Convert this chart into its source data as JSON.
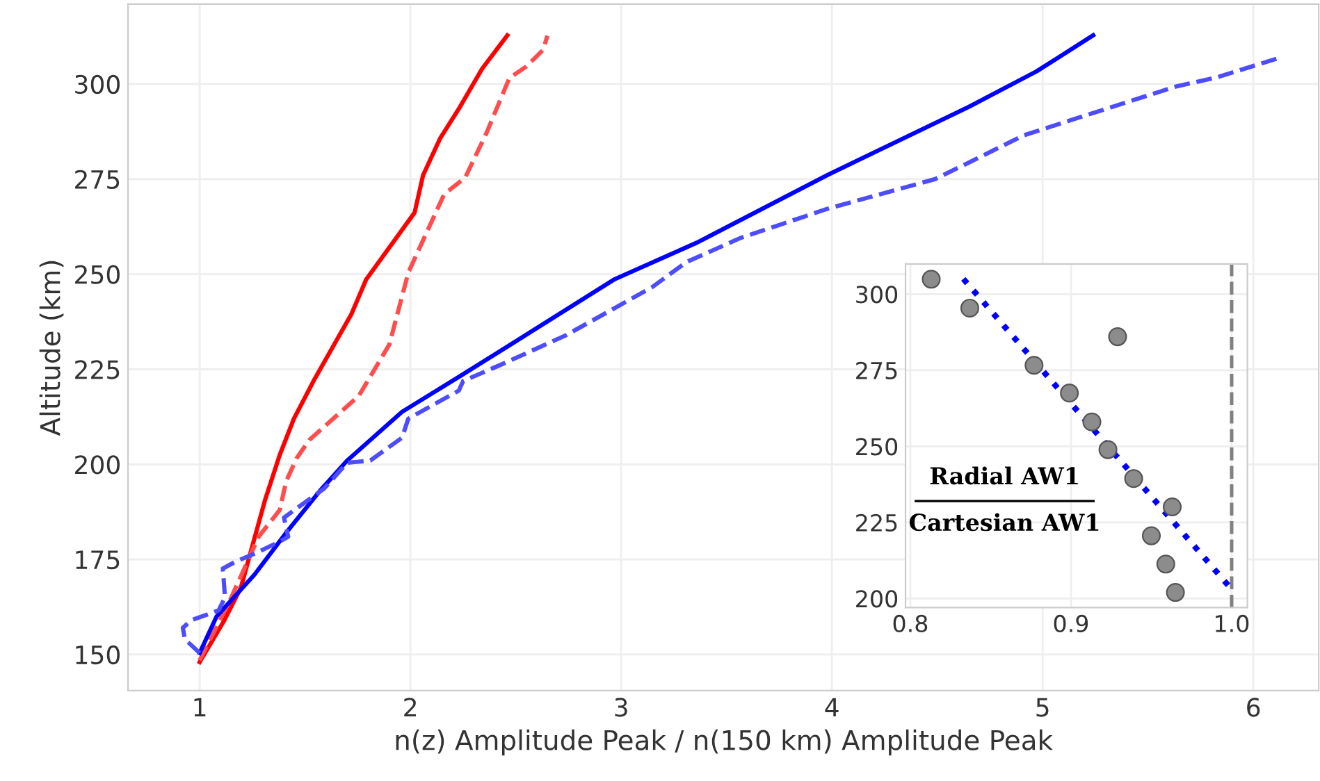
{
  "chart_data": [
    {
      "type": "line",
      "xlabel": "n(z) Amplitude Peak / n(150 km) Amplitude Peak",
      "ylabel": "Altitude (km)",
      "xlim": [
        0.66,
        6.31
      ],
      "ylim": [
        140.5,
        321
      ],
      "xticks": [
        1,
        2,
        3,
        4,
        5,
        6
      ],
      "yticks": [
        150,
        175,
        200,
        225,
        250,
        275,
        300
      ],
      "grid": true,
      "series": [
        {
          "color": "#ff0000",
          "line_style": "solid",
          "x": [
            1.0,
            1.117,
            1.195,
            1.31,
            1.38,
            1.447,
            1.545,
            1.72,
            1.79,
            2.02,
            2.06,
            2.14,
            2.23,
            2.34,
            2.46
          ],
          "values": [
            148,
            159,
            167.5,
            190.6,
            202.5,
            212,
            222.4,
            239.5,
            248.6,
            266.2,
            276,
            285.6,
            293.5,
            304,
            312.8
          ]
        },
        {
          "color": "#ff4d4d",
          "line_style": "dashed",
          "x": [
            1.0,
            1.15,
            1.28,
            1.38,
            1.41,
            1.46,
            1.52,
            1.755,
            1.9,
            1.99,
            2.05,
            2.16,
            2.26,
            2.36,
            2.47,
            2.55,
            2.63,
            2.65
          ],
          "values": [
            148.5,
            165,
            181,
            188,
            195.5,
            201.6,
            206.4,
            218,
            231.5,
            250.4,
            257.7,
            271,
            275.4,
            287,
            301.6,
            304.6,
            309,
            312.7
          ]
        },
        {
          "color": "#0000ff",
          "line_style": "solid",
          "x": [
            1.0,
            1.08,
            1.26,
            1.41,
            1.57,
            1.7,
            1.96,
            2.23,
            2.49,
            2.97,
            3.36,
            3.98,
            4.65,
            4.97,
            5.24
          ],
          "values": [
            150.4,
            160,
            171,
            182,
            193,
            201,
            213.8,
            223,
            232,
            248.7,
            258.3,
            276.1,
            294,
            303.3,
            312.8
          ]
        },
        {
          "color": "#4d4dff",
          "line_style": "dashed",
          "x": [
            1.0,
            0.93,
            0.92,
            0.96,
            1.09,
            1.12,
            1.11,
            1.17,
            1.28,
            1.39,
            1.42,
            1.4,
            1.59,
            1.7,
            1.81,
            1.96,
            1.99,
            2.23,
            2.25,
            2.45,
            2.74,
            2.98,
            3.15,
            3.31,
            3.57,
            3.98,
            4.49,
            4.63,
            4.91,
            5.23,
            5.63,
            5.83,
            6.13
          ],
          "values": [
            150.4,
            154,
            157,
            159,
            161.6,
            165,
            172.6,
            174.4,
            177,
            180,
            181,
            186,
            193.6,
            200.4,
            201,
            207,
            212,
            219.4,
            221.9,
            226.7,
            234,
            241.4,
            246.7,
            253.2,
            259.6,
            267.2,
            275,
            278.8,
            286.5,
            292.2,
            299.3,
            301.8,
            307
          ]
        }
      ]
    },
    {
      "type": "scatter",
      "xlim": [
        0.797,
        1.0098
      ],
      "ylim": [
        197,
        309.9
      ],
      "xticks": [
        0.8,
        0.9,
        {
          "value": 1.0,
          "label": "1.0"
        }
      ],
      "yticks": [
        200,
        225,
        250,
        275,
        300
      ],
      "grid": true,
      "annotations": [
        "Radial AW1",
        "Cartesian AW1"
      ],
      "ref_lines": [
        {
          "axis": "x",
          "value": 1.0,
          "color": "#808080",
          "line_style": "dashed"
        }
      ],
      "series": [
        {
          "type": "scatter",
          "color": "#8c8c8c",
          "x": [
            0.813,
            0.837,
            0.929,
            0.877,
            0.899,
            0.913,
            0.923,
            0.939,
            0.963,
            0.95,
            0.959,
            0.965
          ],
          "values": [
            304.9,
            295.4,
            286,
            276.6,
            267.5,
            258,
            248.9,
            239.4,
            230.1,
            220.6,
            211.3,
            202
          ]
        },
        {
          "type": "line",
          "color": "#0000ff",
          "line_style": "dotted",
          "x": [
            0.833,
            1.0
          ],
          "values": [
            305,
            203
          ]
        }
      ]
    }
  ]
}
